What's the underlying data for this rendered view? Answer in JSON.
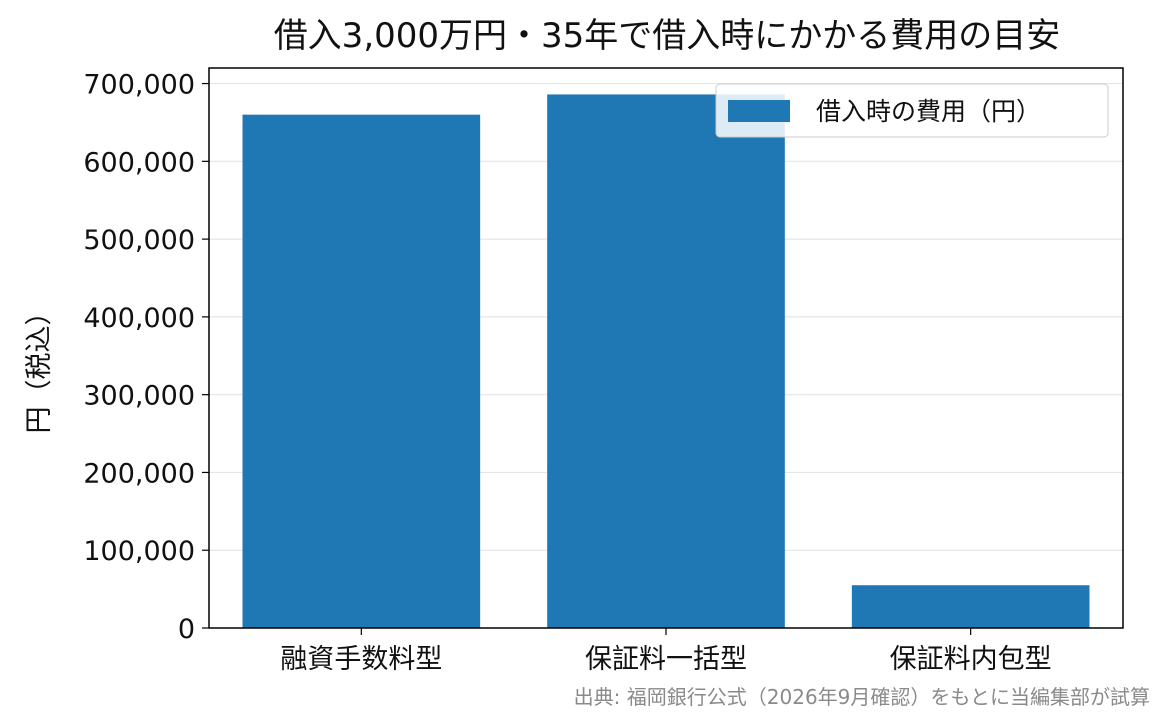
{
  "chart_data": {
    "type": "bar",
    "title": "借入3,000万円・35年で借入時にかかる費用の目安",
    "xlabel": "",
    "ylabel": "円（税込）",
    "categories": [
      "融資手数料型",
      "保証料一括型",
      "保証料内包型"
    ],
    "series": [
      {
        "name": "借入時の費用（円）",
        "values": [
          660000,
          686000,
          55000
        ]
      }
    ],
    "ylim": [
      0,
      720000
    ],
    "yticks": [
      0,
      100000,
      200000,
      300000,
      400000,
      500000,
      600000,
      700000
    ],
    "ytick_labels": [
      "0",
      "100,000",
      "200,000",
      "300,000",
      "400,000",
      "500,000",
      "600,000",
      "700,000"
    ],
    "grid": "horizontal",
    "legend_position": "top-right",
    "bar_color": "#1f77b4",
    "source": "出典: 福岡銀行公式（2026年9月確認）をもとに当編集部が試算"
  }
}
